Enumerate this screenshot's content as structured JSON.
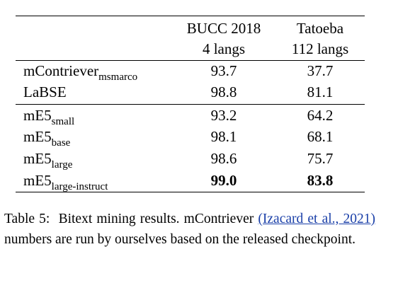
{
  "table": {
    "columns": [
      [
        "BUCC 2018",
        "4 langs"
      ],
      [
        "Tatoeba",
        "112 langs"
      ]
    ],
    "groups": [
      [
        {
          "model": "mContriever",
          "sub": "msmarco",
          "values": [
            "93.7",
            "37.7"
          ]
        },
        {
          "model": "LaBSE",
          "values": [
            "98.8",
            "81.1"
          ]
        }
      ],
      [
        {
          "model": "mE5",
          "sub": "small",
          "values": [
            "93.2",
            "64.2"
          ]
        },
        {
          "model": "mE5",
          "sub": "base",
          "values": [
            "98.1",
            "68.1"
          ]
        },
        {
          "model": "mE5",
          "sub": "large",
          "values": [
            "98.6",
            "75.7"
          ]
        },
        {
          "model": "mE5",
          "sub": "large-instruct",
          "values": [
            "99.0",
            "83.8"
          ],
          "bold": true
        }
      ]
    ]
  },
  "caption": {
    "label": "Table 5:",
    "text": "Bitext mining results. mContriever",
    "citation": "(Izacard et al., 2021)",
    "rest": "numbers are run by ourselves based on the released checkpoint."
  }
}
